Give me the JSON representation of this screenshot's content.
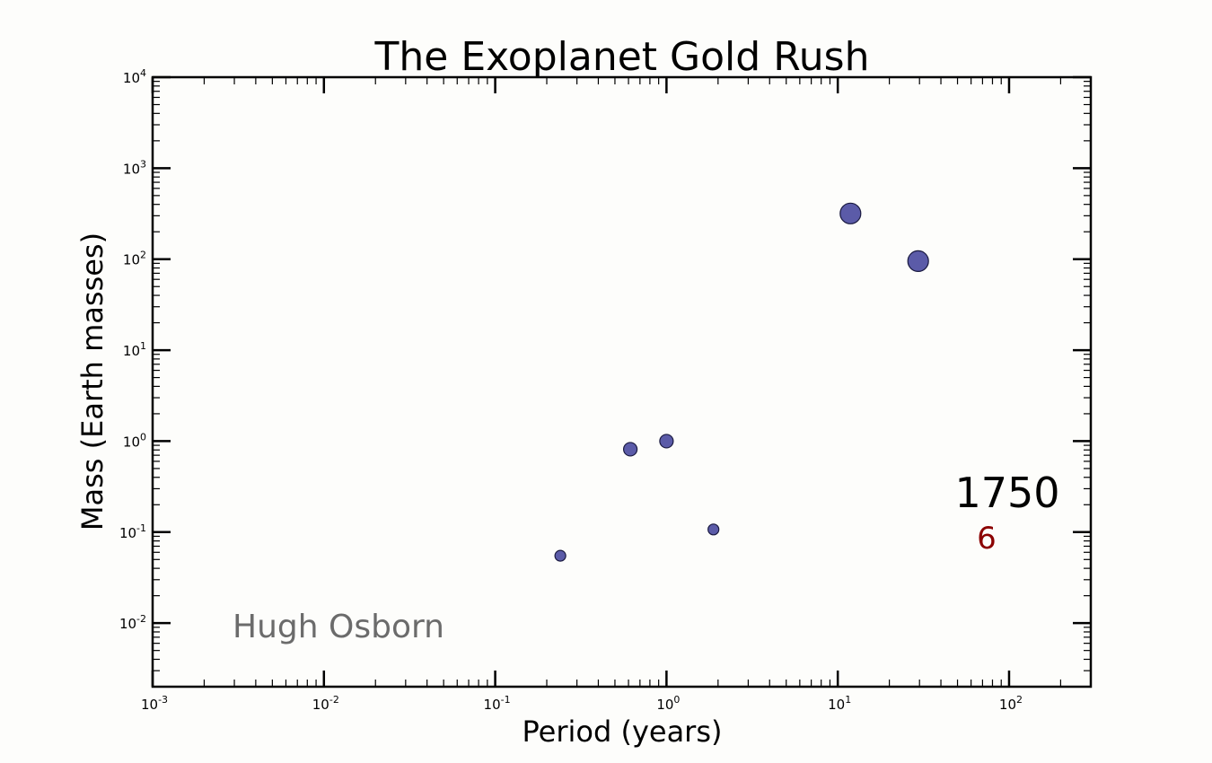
{
  "chart_data": {
    "type": "scatter",
    "title": "The Exoplanet Gold Rush",
    "xlabel": "Period (years)",
    "ylabel": "Mass (Earth masses)",
    "xscale": "log",
    "yscale": "log",
    "xlim": [
      0.001,
      300
    ],
    "ylim": [
      0.002,
      10000
    ],
    "xticks": [
      {
        "base": "10",
        "exp": "-3"
      },
      {
        "base": "10",
        "exp": "-2"
      },
      {
        "base": "10",
        "exp": "-1"
      },
      {
        "base": "10",
        "exp": "0"
      },
      {
        "base": "10",
        "exp": "1"
      },
      {
        "base": "10",
        "exp": "2"
      }
    ],
    "yticks": [
      {
        "base": "10",
        "exp": "-2"
      },
      {
        "base": "10",
        "exp": "-1"
      },
      {
        "base": "10",
        "exp": "0"
      },
      {
        "base": "10",
        "exp": "1"
      },
      {
        "base": "10",
        "exp": "2"
      },
      {
        "base": "10",
        "exp": "3"
      },
      {
        "base": "10",
        "exp": "4"
      }
    ],
    "marker_color": "#5b5ba8",
    "points": [
      {
        "x": 0.24,
        "y": 0.055,
        "size": "small"
      },
      {
        "x": 0.615,
        "y": 0.815,
        "size": "medium"
      },
      {
        "x": 1.0,
        "y": 1.0,
        "size": "medium"
      },
      {
        "x": 1.88,
        "y": 0.107,
        "size": "small"
      },
      {
        "x": 11.86,
        "y": 317.8,
        "size": "large"
      },
      {
        "x": 29.46,
        "y": 95.2,
        "size": "large"
      }
    ],
    "annotations": {
      "year": "1750",
      "count": "6",
      "count_color": "#8b0000",
      "credit": "Hugh Osborn"
    }
  }
}
